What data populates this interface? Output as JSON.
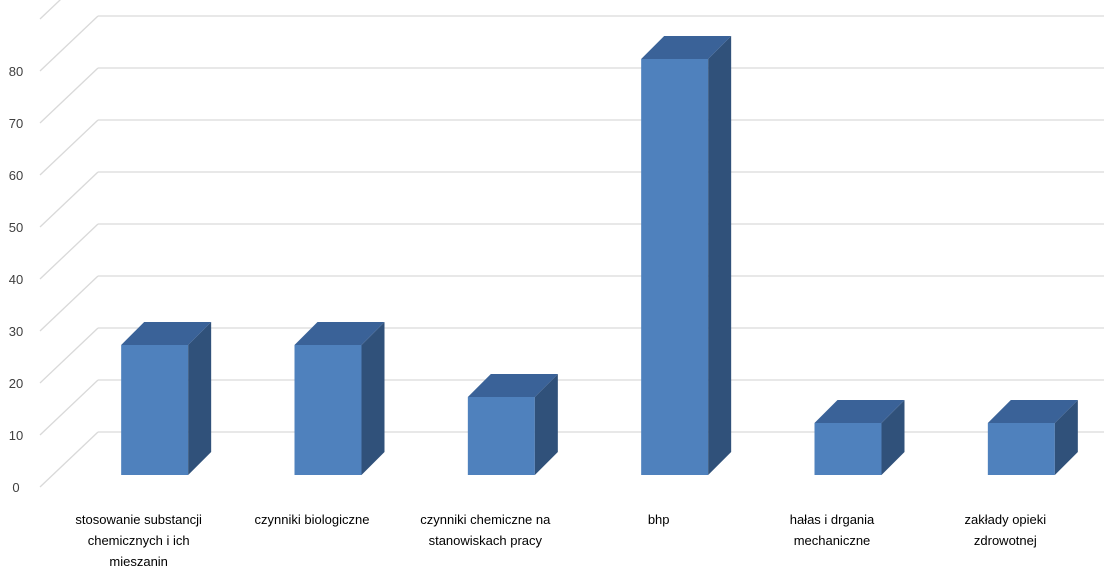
{
  "chart_data": {
    "type": "bar",
    "style": "3d-column",
    "title": "",
    "xlabel": "",
    "ylabel": "",
    "categories": [
      [
        "stosowanie substancji",
        "chemicznych i ich",
        "mieszanin"
      ],
      [
        "czynniki biologiczne"
      ],
      [
        "czynniki chemiczne na",
        "stanowiskach pracy"
      ],
      [
        "bhp"
      ],
      [
        "hałas i drgania",
        "mechaniczne"
      ],
      [
        "zakłady opieki",
        "zdrowotnej"
      ]
    ],
    "values": [
      25,
      25,
      15,
      80,
      10,
      10
    ],
    "ylim": [
      0,
      90
    ],
    "yticks": [
      0,
      10,
      20,
      30,
      40,
      50,
      60,
      70,
      80
    ],
    "grid": true,
    "legend": "none",
    "colors": {
      "front": "#4f81bd",
      "side": "#30517a",
      "top": "#3a6298",
      "grid": "#d9d9d9"
    }
  }
}
